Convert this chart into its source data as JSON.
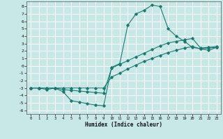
{
  "xlabel": "Humidex (Indice chaleur)",
  "background_color": "#c8e8e8",
  "grid_color": "#ffffff",
  "line_color": "#1a7a6e",
  "xlim": [
    -0.5,
    23.5
  ],
  "ylim": [
    -6.5,
    8.7
  ],
  "xticks": [
    0,
    1,
    2,
    3,
    4,
    5,
    6,
    7,
    8,
    9,
    10,
    11,
    12,
    13,
    14,
    15,
    16,
    17,
    18,
    19,
    20,
    21,
    22,
    23
  ],
  "yticks": [
    -6,
    -5,
    -4,
    -3,
    -2,
    -1,
    0,
    1,
    2,
    3,
    4,
    5,
    6,
    7,
    8
  ],
  "series1_x": [
    0,
    1,
    2,
    3,
    4,
    5,
    6,
    7,
    8,
    9,
    10,
    11,
    12,
    13,
    14,
    15,
    16,
    17,
    18,
    19,
    20,
    21,
    22,
    23
  ],
  "series1_y": [
    -3.0,
    -3.0,
    -3.2,
    -3.0,
    -3.5,
    -4.7,
    -4.9,
    -5.1,
    -5.3,
    -5.4,
    -0.2,
    0.3,
    5.5,
    7.0,
    7.5,
    8.2,
    8.0,
    5.0,
    4.0,
    3.3,
    2.5,
    2.3,
    2.1,
    2.5
  ],
  "series2_x": [
    0,
    1,
    2,
    3,
    4,
    5,
    6,
    7,
    8,
    9,
    10,
    11,
    12,
    13,
    14,
    15,
    16,
    17,
    18,
    19,
    20,
    21,
    22,
    23
  ],
  "series2_y": [
    -3.0,
    -3.0,
    -3.0,
    -3.0,
    -3.2,
    -3.3,
    -3.4,
    -3.5,
    -3.6,
    -3.7,
    -0.3,
    0.2,
    0.7,
    1.2,
    1.7,
    2.2,
    2.7,
    3.1,
    3.3,
    3.5,
    3.7,
    2.4,
    2.5,
    2.6
  ],
  "series3_x": [
    0,
    1,
    2,
    3,
    4,
    5,
    6,
    7,
    8,
    9,
    10,
    11,
    12,
    13,
    14,
    15,
    16,
    17,
    18,
    19,
    20,
    21,
    22,
    23
  ],
  "series3_y": [
    -3.0,
    -3.0,
    -3.0,
    -3.0,
    -3.0,
    -3.0,
    -3.0,
    -3.0,
    -3.0,
    -3.0,
    -1.5,
    -1.0,
    -0.4,
    0.1,
    0.6,
    1.0,
    1.4,
    1.8,
    2.1,
    2.4,
    2.6,
    2.3,
    2.4,
    2.5
  ]
}
